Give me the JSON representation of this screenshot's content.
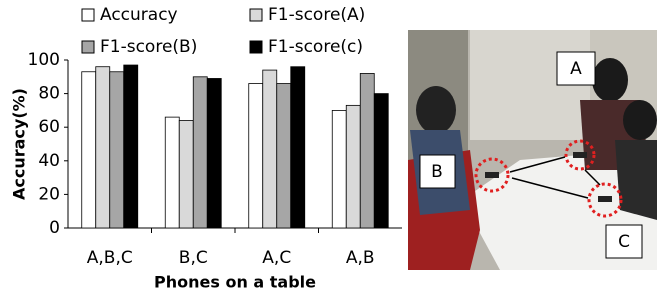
{
  "chart_data": {
    "type": "bar",
    "xlabel": "Phones on a table",
    "ylabel": "Accuracy(%)",
    "categories": [
      "A,B,C",
      "B,C",
      "A,C",
      "A,B"
    ],
    "series": [
      {
        "name": "Accuracy",
        "color": "#ffffff",
        "values": [
          93,
          66,
          86,
          70
        ]
      },
      {
        "name": "F1-score(A)",
        "color": "#d9d9d9",
        "values": [
          96,
          64,
          94,
          73
        ]
      },
      {
        "name": "F1-score(B)",
        "color": "#a6a6a6",
        "values": [
          93,
          90,
          86,
          92
        ]
      },
      {
        "name": "F1-score(c)",
        "color": "#000000",
        "values": [
          97,
          89,
          96,
          80
        ]
      }
    ],
    "ylim": [
      0,
      100
    ],
    "yticks": [
      0,
      20,
      40,
      60,
      80,
      100
    ],
    "grid": false
  },
  "photo": {
    "labels": [
      "A",
      "B",
      "C"
    ]
  }
}
